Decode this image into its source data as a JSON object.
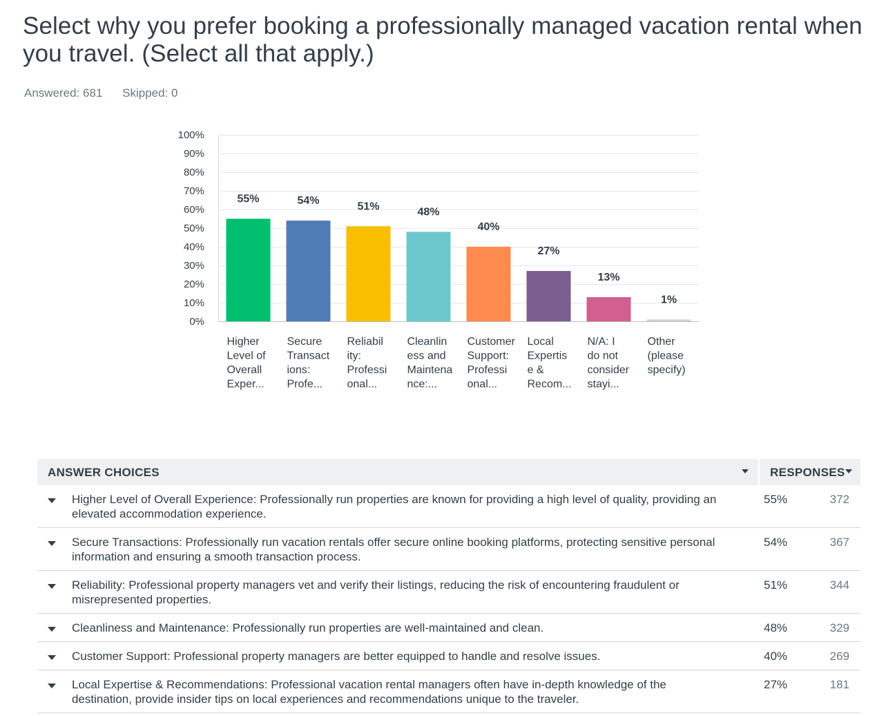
{
  "question": {
    "title": "Select why you prefer booking a professionally managed vacation rental when you travel. (Select all that apply.)",
    "answered_label": "Answered: 681",
    "skipped_label": "Skipped: 0"
  },
  "chart_data": {
    "type": "bar",
    "categories": [
      [
        "Higher",
        "Level of",
        "Overall",
        "Exper..."
      ],
      [
        "Secure",
        "Transact",
        "ions:",
        "Profe..."
      ],
      [
        "Reliabil",
        "ity:",
        "Professi",
        "onal..."
      ],
      [
        "Cleanlin",
        "ess and",
        "Maintena",
        "nce:..."
      ],
      [
        "Customer",
        "Support:",
        "Professi",
        "onal..."
      ],
      [
        "Local",
        "Expertis",
        "e &",
        "Recom..."
      ],
      [
        "N/A: I",
        "do not",
        "consider",
        "stayi..."
      ],
      [
        "Other",
        "(please",
        "specify)"
      ]
    ],
    "values": [
      55,
      54,
      51,
      48,
      40,
      27,
      13,
      1
    ],
    "value_labels": [
      "55%",
      "54%",
      "51%",
      "48%",
      "40%",
      "27%",
      "13%",
      "1%"
    ],
    "colors": [
      "#00bf6f",
      "#507cb6",
      "#f9be00",
      "#6bc8cd",
      "#ff8b4f",
      "#7d5e90",
      "#d25f90",
      "#dacec2"
    ],
    "ylim": [
      0,
      100
    ],
    "yticks": [
      "0%",
      "10%",
      "20%",
      "30%",
      "40%",
      "50%",
      "60%",
      "70%",
      "80%",
      "90%",
      "100%"
    ],
    "grid": true
  },
  "table": {
    "header_choices": "ANSWER CHOICES",
    "header_responses": "RESPONSES",
    "rows": [
      {
        "text": "Higher Level of Overall Experience: Professionally run properties are known for providing a high level of quality, providing an elevated accommodation experience.",
        "pct": "55%",
        "count": "372"
      },
      {
        "text": "Secure Transactions: Professionally run vacation rentals offer secure online booking platforms, protecting sensitive personal information and ensuring a smooth transaction process.",
        "pct": "54%",
        "count": "367"
      },
      {
        "text": "Reliability: Professional property managers vet and verify their listings, reducing the risk of encountering fraudulent or misrepresented properties.",
        "pct": "51%",
        "count": "344"
      },
      {
        "text": "Cleanliness and Maintenance: Professionally run properties are well-maintained and clean.",
        "pct": "48%",
        "count": "329"
      },
      {
        "text": "Customer Support: Professional property managers are better equipped to handle and resolve issues.",
        "pct": "40%",
        "count": "269"
      },
      {
        "text": "Local Expertise & Recommendations: Professional vacation rental managers often have in-depth knowledge of the destination, provide insider tips on local experiences and recommendations unique to the traveler.",
        "pct": "27%",
        "count": "181"
      }
    ]
  }
}
